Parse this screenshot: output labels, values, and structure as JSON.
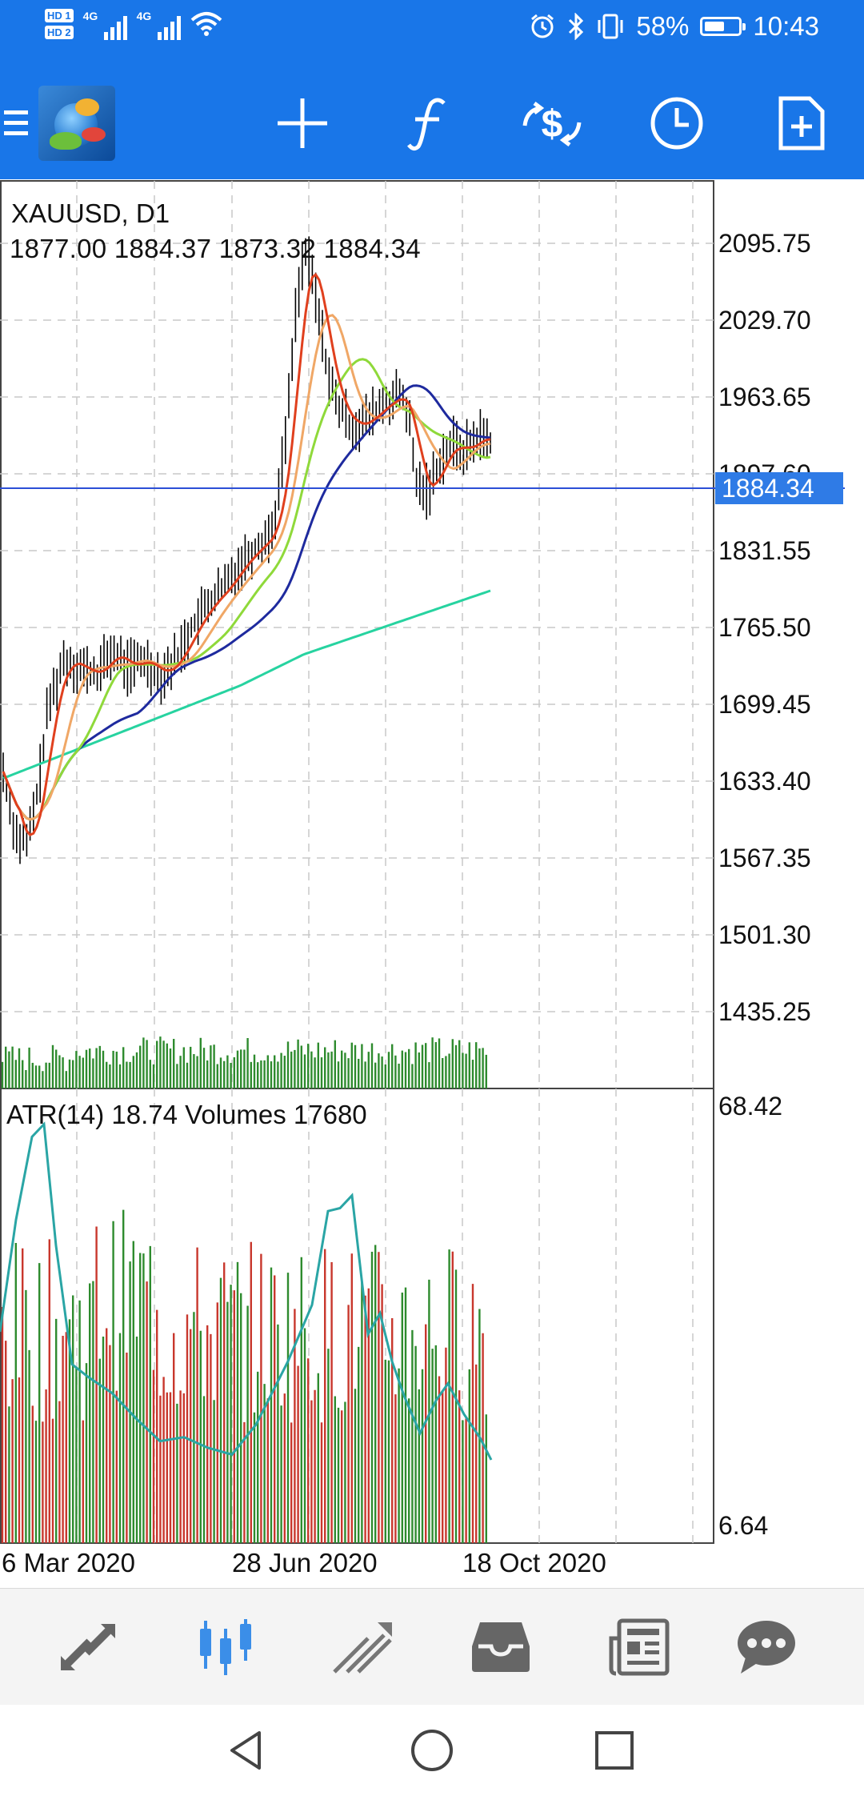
{
  "status_bar": {
    "hd1": "HD 1",
    "hd2": "HD 2",
    "sig1_label": "4G",
    "sig2_label": "4G",
    "battery_percent": "58%",
    "battery_level": 0.58,
    "time": "10:43",
    "icons": [
      "alarm-icon",
      "bluetooth-icon",
      "vibrate-icon",
      "battery-icon",
      "wifi-icon"
    ]
  },
  "toolbar": {
    "icons": [
      "menu-icon",
      "app-logo",
      "crosshair-icon",
      "indicators-icon",
      "trade-icon",
      "period-icon",
      "add-object-icon"
    ]
  },
  "chart": {
    "symbol": "XAUUSD, D1",
    "ohlc": "1877.00 1884.37 1873.32 1884.34",
    "price_axis": [
      "2095.75",
      "2029.70",
      "1963.65",
      "1897.60",
      "1831.55",
      "1765.50",
      "1699.45",
      "1633.40",
      "1567.35",
      "1501.30",
      "1435.25"
    ],
    "current_price": "1884.34",
    "indicator_label": "ATR(14) 18.74 Volumes 17680",
    "indicator_max": "68.42",
    "indicator_min": "6.64",
    "x_labels": [
      "6 Mar 2020",
      "28 Jun 2020",
      "18 Oct 2020"
    ],
    "colors": {
      "bg": "#ffffff",
      "grid": "#c9c9c9",
      "candles": "#000000",
      "ma_fast": "#e0401e",
      "ma_mid": "#f0a766",
      "ma_green": "#8fd93a",
      "ma_blue": "#1e2a9e",
      "ma_teal": "#27d3a0",
      "volume_up": "#2e8b2e",
      "volume_down": "#c8372d",
      "atr": "#2aa5a5",
      "price_line": "#2c4fd6"
    }
  },
  "bottom_nav": {
    "items": [
      "quotes-icon",
      "chart-icon",
      "trade-icon",
      "history-icon",
      "news-icon",
      "chat-icon"
    ]
  },
  "system_nav": {
    "items": [
      "back-icon",
      "home-icon",
      "recents-icon"
    ]
  }
}
